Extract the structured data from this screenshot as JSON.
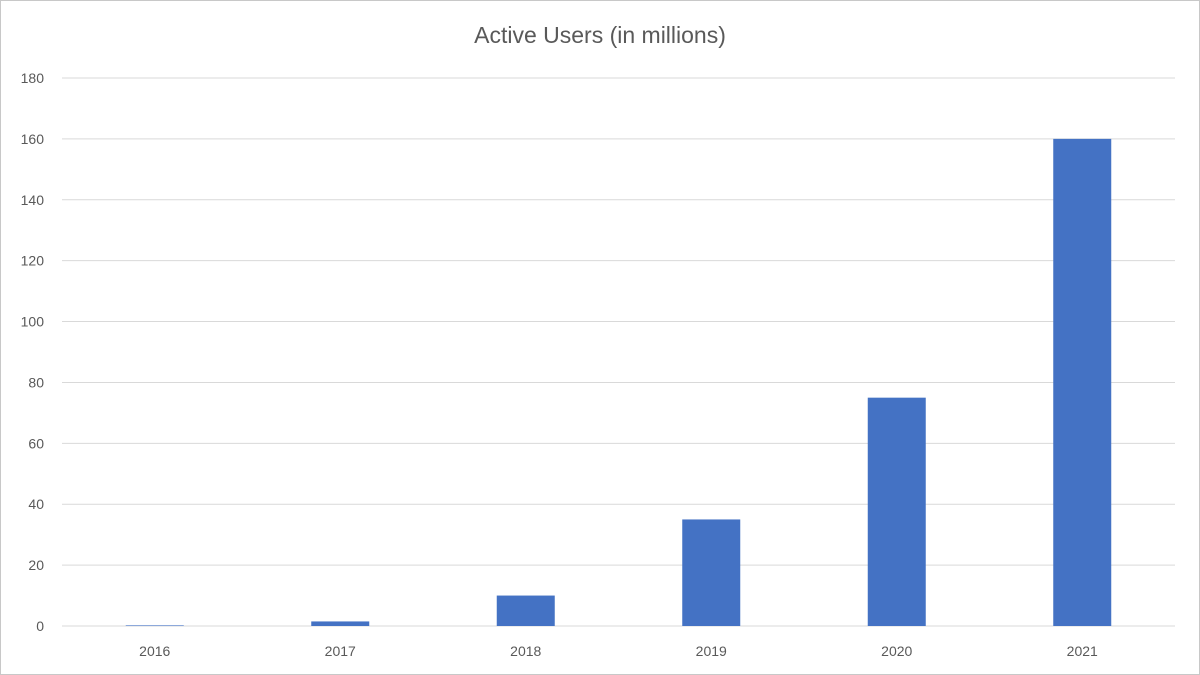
{
  "chart_data": {
    "type": "bar",
    "title": "Active Users (in millions)",
    "categories": [
      "2016",
      "2017",
      "2018",
      "2019",
      "2020",
      "2021"
    ],
    "values": [
      0.2,
      1.5,
      10,
      35,
      75,
      160
    ],
    "xlabel": "",
    "ylabel": "",
    "ylim": [
      0,
      180
    ],
    "yticks": [
      0,
      20,
      40,
      60,
      80,
      100,
      120,
      140,
      160,
      180
    ],
    "grid": true,
    "legend": "none",
    "bar_color": "#4472C4"
  }
}
